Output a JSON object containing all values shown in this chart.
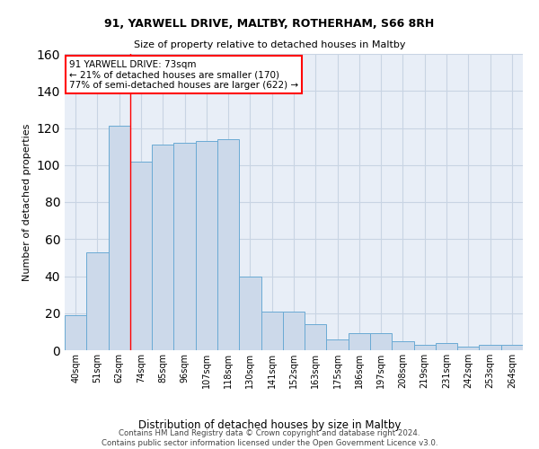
{
  "title1": "91, YARWELL DRIVE, MALTBY, ROTHERHAM, S66 8RH",
  "title2": "Size of property relative to detached houses in Maltby",
  "xlabel": "Distribution of detached houses by size in Maltby",
  "ylabel": "Number of detached properties",
  "bar_labels": [
    "40sqm",
    "51sqm",
    "62sqm",
    "74sqm",
    "85sqm",
    "96sqm",
    "107sqm",
    "118sqm",
    "130sqm",
    "141sqm",
    "152sqm",
    "163sqm",
    "175sqm",
    "186sqm",
    "197sqm",
    "208sqm",
    "219sqm",
    "231sqm",
    "242sqm",
    "253sqm",
    "264sqm"
  ],
  "bar_values": [
    19,
    53,
    121,
    102,
    111,
    112,
    113,
    114,
    40,
    21,
    21,
    14,
    6,
    9,
    9,
    5,
    3,
    4,
    2,
    3,
    3
  ],
  "bar_color": "#ccd9ea",
  "bar_edge_color": "#6aaad4",
  "grid_color": "#c8d4e3",
  "background_color": "#e8eef7",
  "annotation_text": "91 YARWELL DRIVE: 73sqm\n← 21% of detached houses are smaller (170)\n77% of semi-detached houses are larger (622) →",
  "red_line_x": 2.5,
  "ylim": [
    0,
    160
  ],
  "yticks": [
    0,
    20,
    40,
    60,
    80,
    100,
    120,
    140,
    160
  ],
  "footnote": "Contains HM Land Registry data © Crown copyright and database right 2024.\nContains public sector information licensed under the Open Government Licence v3.0.",
  "fig_width": 6.0,
  "fig_height": 5.0,
  "dpi": 100
}
